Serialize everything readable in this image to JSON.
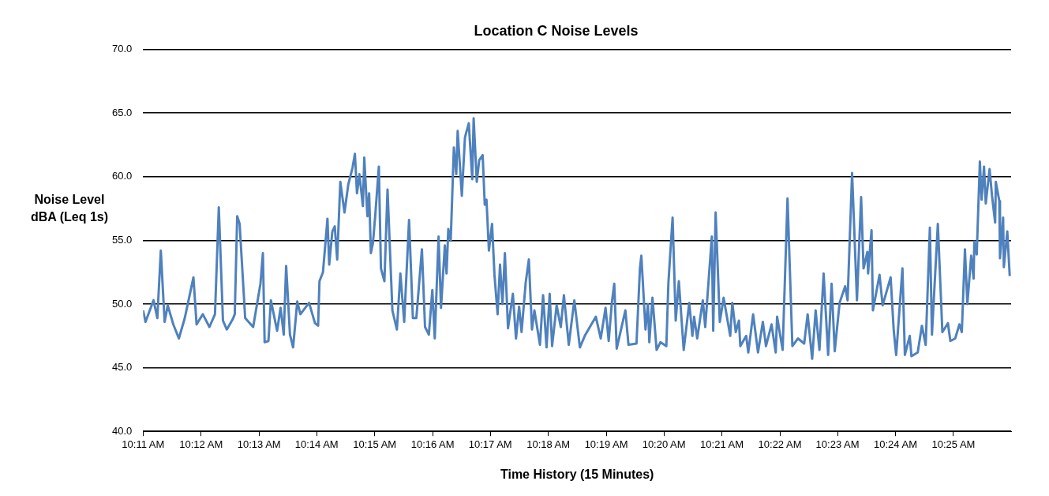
{
  "chart_data": {
    "type": "line",
    "title": "Location C Noise Levels",
    "xlabel": "Time History (15 Minutes)",
    "ylabel": "Noise Level\ndBA (Leq 1s)",
    "xlim": [
      10.1833,
      10.4333
    ],
    "xticks": [
      {
        "value": 10.1833,
        "label": "10:11 AM"
      },
      {
        "value": 10.2,
        "label": "10:12 AM"
      },
      {
        "value": 10.2167,
        "label": "10:13 AM"
      },
      {
        "value": 10.2333,
        "label": "10:14 AM"
      },
      {
        "value": 10.25,
        "label": "10:15 AM"
      },
      {
        "value": 10.2667,
        "label": "10:16 AM"
      },
      {
        "value": 10.2833,
        "label": "10:17 AM"
      },
      {
        "value": 10.3,
        "label": "10:18 AM"
      },
      {
        "value": 10.3167,
        "label": "10:19 AM"
      },
      {
        "value": 10.3333,
        "label": "10:20 AM"
      },
      {
        "value": 10.35,
        "label": "10:21 AM"
      },
      {
        "value": 10.3667,
        "label": "10:22 AM"
      },
      {
        "value": 10.3833,
        "label": "10:23 AM"
      },
      {
        "value": 10.4,
        "label": "10:24 AM"
      },
      {
        "value": 10.4167,
        "label": "10:25 AM"
      }
    ],
    "ylim": [
      40,
      70
    ],
    "yticks": [
      {
        "value": 40,
        "label": "40.0"
      },
      {
        "value": 45,
        "label": "45.0"
      },
      {
        "value": 50,
        "label": "50.0"
      },
      {
        "value": 55,
        "label": "55.0"
      },
      {
        "value": 60,
        "label": "60.0"
      },
      {
        "value": 65,
        "label": "65.0"
      },
      {
        "value": 70,
        "label": "70.0"
      }
    ],
    "grid": "y",
    "legend": false,
    "marker": "none",
    "line_style": "solid",
    "series": [
      {
        "color": "#4f81bd",
        "x": [
          10.1833,
          10.184,
          10.1863,
          10.1874,
          10.1884,
          10.1895,
          10.1904,
          10.192,
          10.1936,
          10.1953,
          10.1978,
          10.1987,
          10.2005,
          10.2024,
          10.204,
          10.2051,
          10.2063,
          10.2074,
          10.2091,
          10.2097,
          10.2104,
          10.2111,
          10.2127,
          10.215,
          10.2171,
          10.2178,
          10.2183,
          10.2194,
          10.2201,
          10.2219,
          10.2229,
          10.2238,
          10.2245,
          10.2256,
          10.2265,
          10.2277,
          10.2286,
          10.2311,
          10.2328,
          10.2337,
          10.2341,
          10.2351,
          10.2364,
          10.2369,
          10.2378,
          10.2385,
          10.2392,
          10.2401,
          10.2413,
          10.2424,
          10.2436,
          10.2443,
          10.2449,
          10.2456,
          10.2466,
          10.247,
          10.2479,
          10.2484,
          10.2489,
          10.2495,
          10.2502,
          10.2512,
          10.2518,
          10.2528,
          10.2537,
          10.2551,
          10.2564,
          10.2574,
          10.2585,
          10.2599,
          10.261,
          10.262,
          10.2636,
          10.2645,
          10.2656,
          10.2666,
          10.2673,
          10.2684,
          10.2691,
          10.2702,
          10.2707,
          10.2712,
          10.2719,
          10.2728,
          10.2735,
          10.2739,
          10.2751,
          10.276,
          10.2771,
          10.2781,
          10.2785,
          10.2794,
          10.2801,
          10.2811,
          10.2817,
          10.2822,
          10.2829,
          10.2838,
          10.2845,
          10.2854,
          10.2861,
          10.2868,
          10.2875,
          10.2884,
          10.2898,
          10.2907,
          10.2916,
          10.2923,
          10.2935,
          10.2944,
          10.2953,
          10.296,
          10.2976,
          10.2985,
          10.2995,
          10.3004,
          10.3011,
          10.3024,
          10.3036,
          10.3045,
          10.3059,
          10.3075,
          10.3091,
          10.3105,
          10.3126,
          10.3137,
          10.3151,
          10.3165,
          10.3174,
          10.3183,
          10.319,
          10.3197,
          10.3222,
          10.3231,
          10.3254,
          10.3264,
          10.3268,
          10.328,
          10.3287,
          10.3291,
          10.33,
          10.3312,
          10.3323,
          10.334,
          10.3346,
          10.3358,
          10.3367,
          10.3376,
          10.339,
          10.3406,
          10.3415,
          10.342,
          10.3429,
          10.3445,
          10.3452,
          10.3471,
          10.3475,
          10.3482,
          10.3494,
          10.3505,
          10.3524,
          10.353,
          10.354,
          10.3549,
          10.3553,
          10.357,
          10.3576,
          10.359,
          10.3604,
          10.3618,
          10.3627,
          10.3643,
          10.3655,
          10.3659,
          10.3675,
          10.3689,
          10.3703,
          10.3719,
          10.3737,
          10.3747,
          10.376,
          10.377,
          10.3781,
          10.3793,
          10.3806,
          10.3816,
          10.3825,
          10.3839,
          10.3855,
          10.3862,
          10.3875,
          10.3889,
          10.3901,
          10.3908,
          10.3919,
          10.3921,
          10.3931,
          10.3935,
          10.3954,
          10.3963,
          10.3986,
          10.3995,
          10.4002,
          10.402,
          10.4027,
          10.4041,
          10.4046,
          10.4064,
          10.4076,
          10.4087,
          10.4099,
          10.4105,
          10.4122,
          10.4135,
          10.4151,
          10.4158,
          10.4172,
          10.4184,
          10.4191,
          10.42,
          10.4207,
          10.4218,
          10.4225,
          10.4227,
          10.4234,
          10.4243,
          10.4248,
          10.4255,
          10.426,
          10.4271,
          10.4278,
          10.4287,
          10.4289,
          10.4299,
          10.4301,
          10.431,
          10.4312,
          10.4322,
          10.4329
        ],
        "values": [
          49.5,
          48.6,
          50.3,
          48.9,
          54.2,
          48.6,
          49.9,
          48.4,
          47.3,
          48.9,
          52.1,
          48.4,
          49.2,
          48.2,
          49.2,
          57.6,
          48.7,
          48.0,
          48.8,
          49.2,
          56.9,
          56.3,
          48.9,
          48.2,
          51.6,
          54.0,
          47.0,
          47.1,
          50.3,
          47.9,
          49.7,
          47.6,
          53.0,
          47.6,
          46.6,
          50.2,
          49.2,
          50.1,
          48.5,
          48.3,
          51.8,
          52.5,
          56.7,
          53.1,
          55.7,
          56.1,
          53.5,
          59.6,
          57.2,
          59.4,
          60.7,
          61.8,
          58.7,
          60.2,
          57.7,
          61.5,
          56.9,
          58.7,
          54.0,
          54.8,
          57.1,
          60.8,
          52.8,
          51.8,
          59.0,
          49.5,
          48.0,
          52.4,
          48.6,
          56.6,
          48.9,
          48.9,
          54.3,
          48.2,
          47.6,
          51.1,
          47.3,
          55.3,
          49.7,
          54.6,
          52.4,
          55.9,
          55.0,
          62.3,
          60.2,
          63.6,
          58.5,
          63.1,
          64.2,
          59.8,
          64.6,
          59.6,
          61.3,
          61.7,
          57.8,
          58.2,
          54.2,
          56.3,
          52.3,
          49.2,
          53.1,
          50.0,
          54.0,
          48.1,
          50.8,
          47.3,
          49.8,
          47.8,
          51.7,
          53.5,
          48.0,
          49.5,
          46.8,
          50.7,
          46.6,
          50.8,
          46.7,
          49.9,
          48.2,
          50.7,
          46.8,
          50.3,
          46.6,
          47.5,
          48.5,
          49.0,
          47.3,
          49.7,
          47.1,
          50.1,
          51.6,
          46.5,
          49.5,
          46.8,
          46.9,
          52.8,
          53.8,
          48.0,
          50.0,
          47.0,
          50.5,
          46.4,
          47.0,
          46.7,
          51.7,
          56.8,
          48.7,
          51.8,
          46.4,
          50.1,
          47.5,
          49.0,
          47.3,
          50.3,
          48.2,
          55.3,
          47.9,
          57.2,
          48.6,
          50.5,
          47.5,
          50.1,
          47.8,
          48.7,
          46.7,
          47.5,
          46.2,
          49.2,
          46.2,
          48.6,
          46.7,
          48.4,
          46.2,
          49.0,
          46.4,
          58.3,
          46.7,
          47.3,
          46.9,
          49.2,
          45.7,
          49.5,
          46.4,
          52.4,
          46.0,
          51.6,
          46.3,
          50.1,
          51.4,
          50.3,
          60.3,
          50.3,
          58.4,
          52.8,
          54.1,
          52.4,
          55.8,
          49.5,
          52.3,
          49.9,
          52.1,
          47.9,
          46.0,
          52.8,
          46.0,
          47.5,
          45.9,
          46.2,
          48.3,
          46.8,
          56.0,
          47.6,
          56.3,
          47.8,
          48.5,
          47.1,
          47.3,
          48.4,
          47.8,
          54.3,
          50.0,
          53.8,
          52.0,
          54.9,
          53.9,
          61.2,
          58.2,
          60.8,
          57.9,
          60.6,
          58.5,
          56.4,
          59.6,
          58.1,
          53.6,
          56.8,
          52.9,
          55.7,
          52.2
        ]
      }
    ]
  }
}
